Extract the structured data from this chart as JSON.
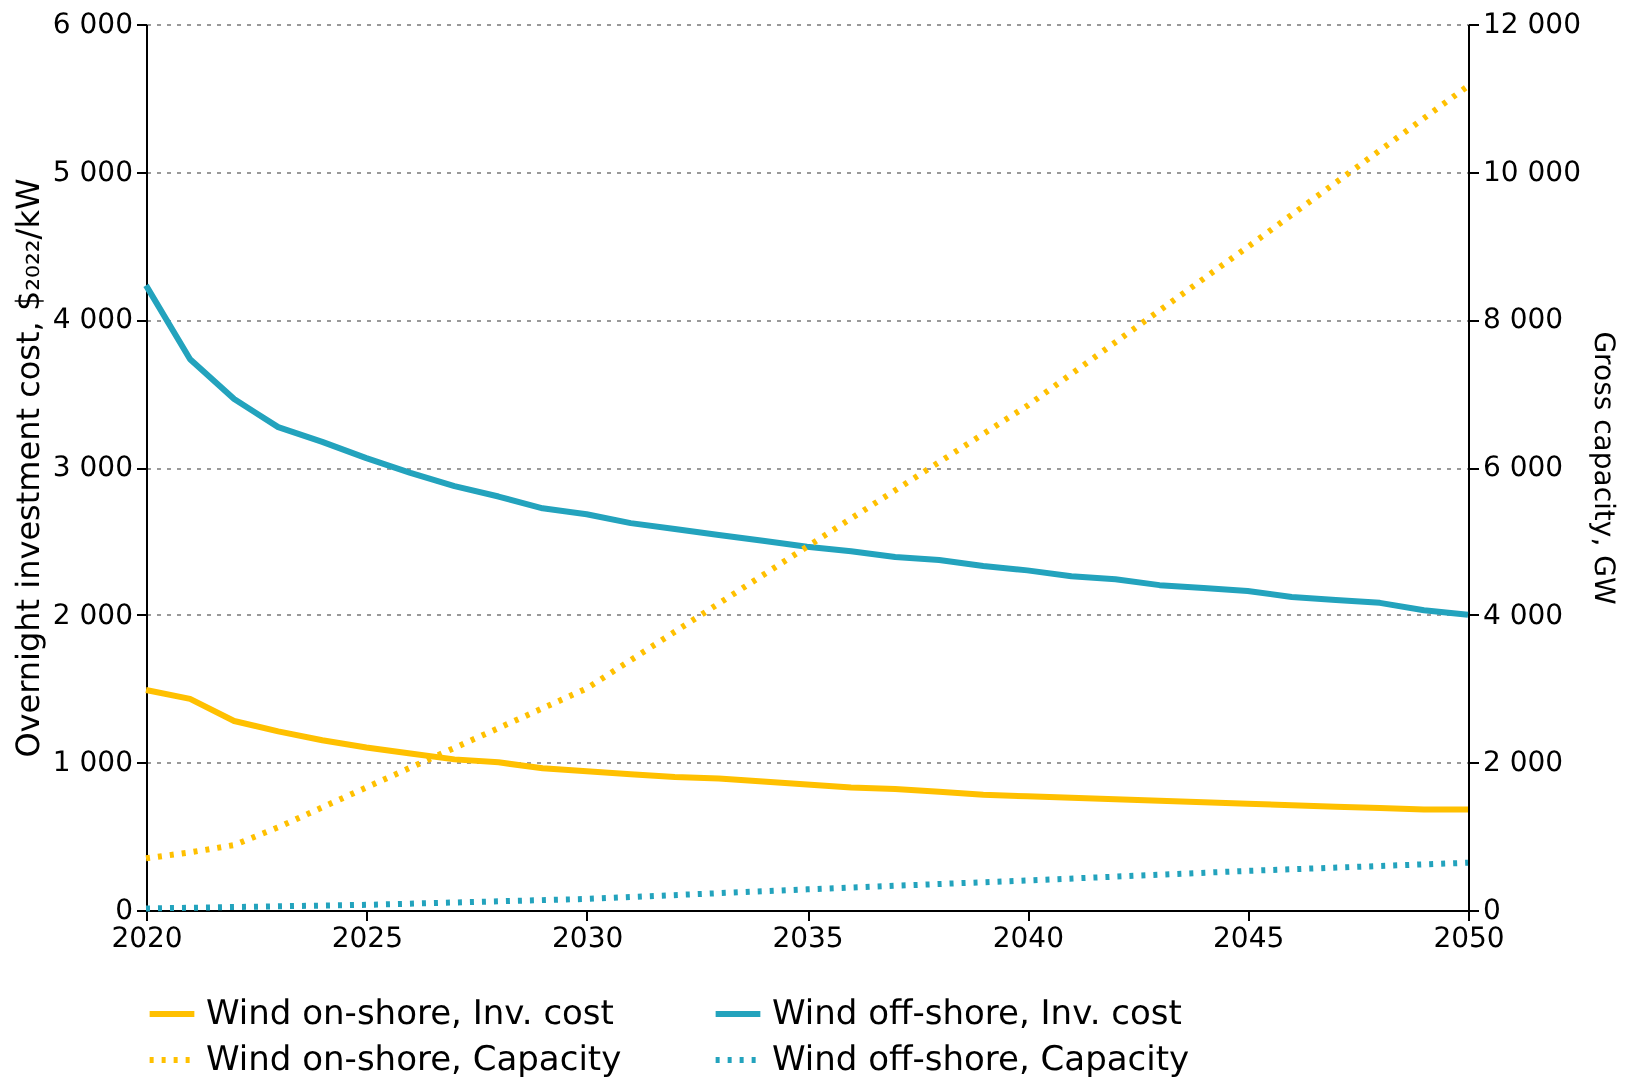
{
  "chart_data": {
    "type": "line",
    "ylabel": "Overnight investment cost, $₂₀₂₂/kW",
    "y2label": "Gross capacity, GW",
    "xlim": [
      2020,
      2050
    ],
    "xticks": [
      2020,
      2025,
      2030,
      2035,
      2040,
      2045,
      2050
    ],
    "ylim": [
      0,
      6000
    ],
    "yticks": [
      0,
      {
        "value": 1000,
        "label": "1 000"
      },
      {
        "value": 2000,
        "label": "2 000"
      },
      {
        "value": 3000,
        "label": "3 000"
      },
      {
        "value": 4000,
        "label": "4 000"
      },
      {
        "value": 5000,
        "label": "5 000"
      },
      {
        "value": 6000,
        "label": "6 000"
      }
    ],
    "y2lim": [
      0,
      12000
    ],
    "y2ticks": [
      0,
      {
        "value": 2000,
        "label": "2 000"
      },
      {
        "value": 4000,
        "label": "4 000"
      },
      {
        "value": 6000,
        "label": "6 000"
      },
      {
        "value": 8000,
        "label": "8 000"
      },
      {
        "value": 10000,
        "label": "10 000"
      },
      {
        "value": 12000,
        "label": "12 000"
      }
    ],
    "grid": "y",
    "legend": "bottom",
    "marker": "none",
    "series": [
      {
        "name": "Wind on-shore, Inv. cost",
        "color": "#ffc000",
        "line_style": "solid",
        "x": [
          2020,
          2021,
          2022,
          2023,
          2024,
          2025,
          2026,
          2027,
          2028,
          2029,
          2030,
          2031,
          2032,
          2033,
          2034,
          2035,
          2036,
          2037,
          2038,
          2039,
          2040,
          2041,
          2042,
          2043,
          2044,
          2045,
          2046,
          2047,
          2048,
          2049,
          2050
        ],
        "values": [
          1490,
          1430,
          1280,
          1210,
          1150,
          1100,
          1060,
          1020,
          1000,
          960,
          940,
          920,
          900,
          890,
          870,
          850,
          830,
          820,
          800,
          780,
          770,
          760,
          750,
          740,
          730,
          720,
          710,
          700,
          690,
          680,
          680
        ]
      },
      {
        "name": "Wind off-shore, Inv. cost",
        "color": "#23a3bd",
        "line_style": "solid",
        "x": [
          2020,
          2021,
          2022,
          2023,
          2024,
          2025,
          2026,
          2027,
          2028,
          2029,
          2030,
          2031,
          2032,
          2033,
          2034,
          2035,
          2036,
          2037,
          2038,
          2039,
          2040,
          2041,
          2042,
          2043,
          2044,
          2045,
          2046,
          2047,
          2048,
          2049,
          2050
        ],
        "values": [
          4230,
          3730,
          3460,
          3270,
          3170,
          3060,
          2960,
          2870,
          2800,
          2720,
          2680,
          2620,
          2580,
          2540,
          2500,
          2460,
          2430,
          2390,
          2370,
          2330,
          2300,
          2260,
          2240,
          2200,
          2180,
          2160,
          2120,
          2100,
          2080,
          2030,
          2000
        ]
      },
      {
        "name": "Wind on-shore, Capacity",
        "color": "#ffc000",
        "line_style": "dotted",
        "axis": "y2",
        "x": [
          2020,
          2021,
          2022,
          2023,
          2025,
          2030,
          2035,
          2040,
          2045,
          2050
        ],
        "values": [
          700,
          780,
          880,
          1120,
          1660,
          3000,
          4920,
          6830,
          8980,
          11160
        ]
      },
      {
        "name": "Wind off-shore, Capacity",
        "color": "#23a3bd",
        "line_style": "dotted",
        "axis": "y2",
        "x": [
          2020,
          2025,
          2030,
          2035,
          2040,
          2045,
          2050
        ],
        "values": [
          20,
          70,
          150,
          280,
          400,
          530,
          640
        ]
      }
    ]
  }
}
